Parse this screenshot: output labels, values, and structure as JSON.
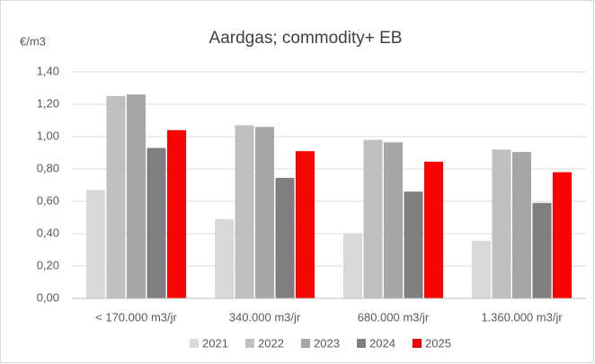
{
  "chart_data": {
    "type": "bar",
    "title": "Aardgas; commodity+ EB",
    "y_label": "€/m3",
    "categories": [
      "< 170.000 m3/jr",
      "340.000 m3/jr",
      "680.000 m3/jr",
      "1.360.000 m3/jr"
    ],
    "series": [
      {
        "name": "2021",
        "color": "#d9d9d9",
        "values": [
          0.67,
          0.49,
          0.4,
          0.355
        ]
      },
      {
        "name": "2022",
        "color": "#bfbfbf",
        "values": [
          1.25,
          1.07,
          0.98,
          0.92
        ]
      },
      {
        "name": "2023",
        "color": "#a6a6a6",
        "values": [
          1.26,
          1.06,
          0.965,
          0.905
        ]
      },
      {
        "name": "2024",
        "color": "#7f7f7f",
        "values": [
          0.93,
          0.745,
          0.66,
          0.59
        ]
      },
      {
        "name": "2025",
        "color": "#ff0000",
        "values": [
          1.04,
          0.91,
          0.845,
          0.78
        ]
      }
    ],
    "ylim": [
      0,
      1.4
    ],
    "yticks": [
      {
        "value": 0,
        "label": "0,00"
      },
      {
        "value": 0.2,
        "label": "0,20"
      },
      {
        "value": 0.4,
        "label": "0,40"
      },
      {
        "value": 0.6,
        "label": "0,60"
      },
      {
        "value": 0.8,
        "label": "0,80"
      },
      {
        "value": 1.0,
        "label": "1,00"
      },
      {
        "value": 1.2,
        "label": "1,20"
      },
      {
        "value": 1.4,
        "label": "1,40"
      }
    ],
    "grid": true,
    "legend": "bottom"
  }
}
